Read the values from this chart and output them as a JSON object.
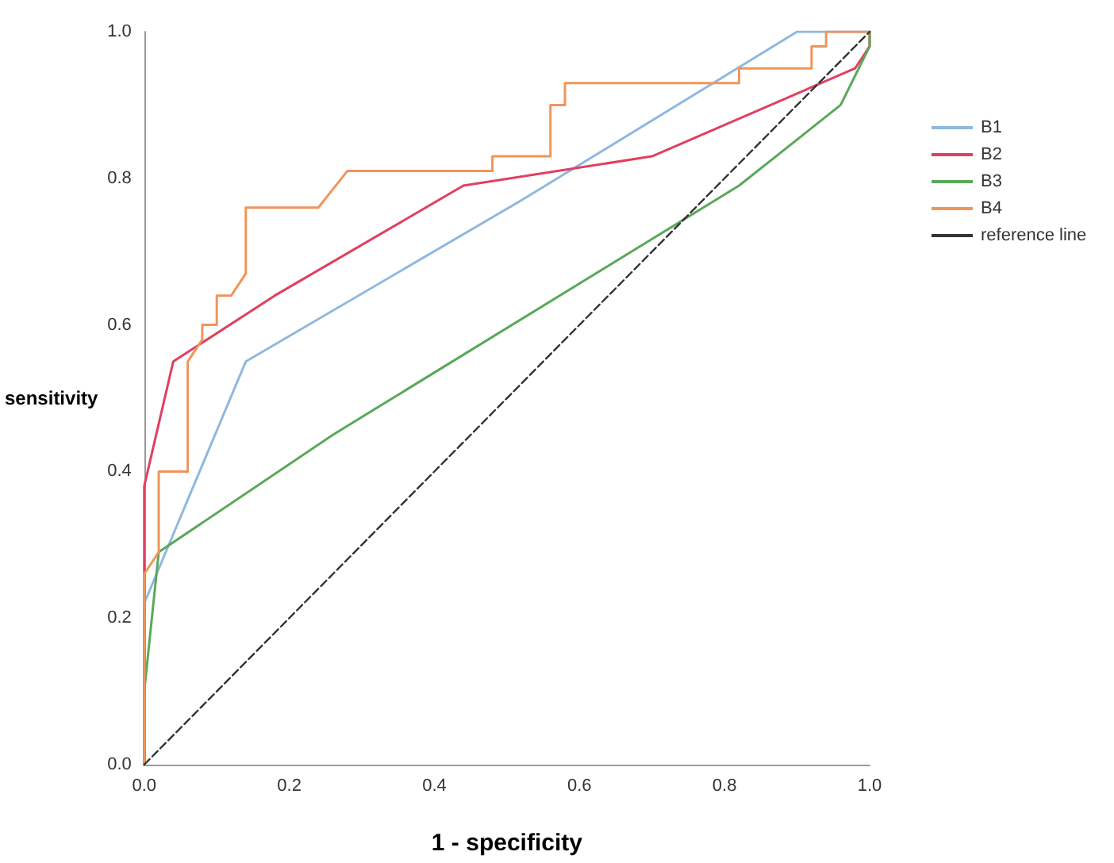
{
  "chart_data": {
    "type": "line",
    "xlabel": "1 - specificity",
    "ylabel": "sensitivity",
    "xlim": [
      0,
      1
    ],
    "ylim": [
      0,
      1
    ],
    "xticks": [
      {
        "value": 0,
        "label": "0.0"
      },
      {
        "value": 0.2,
        "label": "0.2"
      },
      {
        "value": 0.4,
        "label": "0.4"
      },
      {
        "value": 0.6,
        "label": "0.6"
      },
      {
        "value": 0.8,
        "label": "0.8"
      },
      {
        "value": 1,
        "label": "1.0"
      }
    ],
    "yticks": [
      {
        "value": 0,
        "label": "0.0"
      },
      {
        "value": 0.2,
        "label": "0.2"
      },
      {
        "value": 0.4,
        "label": "0.4"
      },
      {
        "value": 0.6,
        "label": "0.6"
      },
      {
        "value": 0.8,
        "label": "0.8"
      },
      {
        "value": 1,
        "label": "1.0"
      }
    ],
    "grid": false,
    "legend": "right",
    "marker": "none",
    "series": [
      {
        "name": "B1",
        "color": "#8fb8e0",
        "x": [
          0,
          0,
          0.14,
          0.52,
          0.9,
          1
        ],
        "values": [
          0,
          0.22,
          0.55,
          0.77,
          1,
          1
        ]
      },
      {
        "name": "B2",
        "color": "#e0405f",
        "x": [
          0,
          0,
          0.04,
          0.18,
          0.44,
          0.7,
          0.98,
          1,
          1
        ],
        "values": [
          0,
          0.38,
          0.55,
          0.64,
          0.79,
          0.83,
          0.95,
          0.98,
          1
        ]
      },
      {
        "name": "B3",
        "color": "#5aa85a",
        "x": [
          0,
          0,
          0.02,
          0.26,
          0.82,
          0.96,
          1,
          1
        ],
        "values": [
          0,
          0.1,
          0.29,
          0.45,
          0.79,
          0.9,
          0.98,
          1
        ]
      },
      {
        "name": "B4",
        "color": "#f0955a",
        "x": [
          0,
          0,
          0.02,
          0.02,
          0.06,
          0.06,
          0.08,
          0.08,
          0.1,
          0.1,
          0.12,
          0.14,
          0.14,
          0.24,
          0.28,
          0.48,
          0.48,
          0.56,
          0.56,
          0.58,
          0.58,
          0.82,
          0.82,
          0.92,
          0.92,
          0.94,
          0.94,
          1
        ],
        "values": [
          0,
          0.26,
          0.29,
          0.4,
          0.4,
          0.55,
          0.58,
          0.6,
          0.6,
          0.64,
          0.64,
          0.67,
          0.76,
          0.76,
          0.81,
          0.81,
          0.83,
          0.83,
          0.9,
          0.9,
          0.93,
          0.93,
          0.95,
          0.95,
          0.98,
          0.98,
          1,
          1
        ]
      },
      {
        "name": "reference line",
        "color": "#333333",
        "line_style": "dashed",
        "x": [
          0,
          1
        ],
        "values": [
          0,
          1
        ]
      }
    ]
  }
}
